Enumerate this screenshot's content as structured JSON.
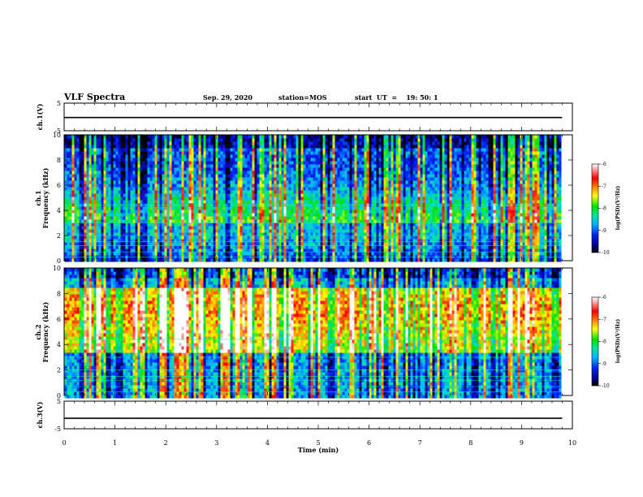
{
  "header": {
    "title": "VLF Spectra",
    "date": "Sep. 29, 2020",
    "station": "station=MOS",
    "start": "start  UT  =    19: 50: 1"
  },
  "chart_data": [
    {
      "type": "line",
      "name": "ch1_waveform",
      "ylabel": "ch.1(V)",
      "ylim": [
        -5,
        5
      ],
      "yticks": [
        "5",
        "-5"
      ],
      "x": [
        0,
        9.8
      ],
      "y": [
        -0.2,
        -0.2
      ]
    },
    {
      "type": "heatmap",
      "name": "ch1_spectrogram",
      "ylabel": "ch.1\nFrequency (kHz)",
      "ylim": [
        0,
        10
      ],
      "yticks": [
        "0",
        "2",
        "4",
        "6",
        "8",
        "10"
      ],
      "x_range_min": [
        0,
        9.8
      ],
      "colorbar": {
        "label": "log(PSD)(V²/Hz)",
        "range": [
          -10,
          -6
        ],
        "ticks": [
          "-6",
          "-7",
          "-8",
          "-9",
          "-10"
        ]
      }
    },
    {
      "type": "heatmap",
      "name": "ch2_spectrogram",
      "ylabel": "ch.2\nFrequency (kHz)",
      "ylim": [
        0,
        10
      ],
      "yticks": [
        "0",
        "2",
        "4",
        "6",
        "8",
        "10"
      ],
      "x_range_min": [
        0,
        9.8
      ],
      "colorbar": {
        "label": "log(PSD)(V²/Hz)",
        "range": [
          -10,
          -6
        ],
        "ticks": [
          "-6",
          "-7",
          "-8",
          "-9",
          "-10"
        ]
      }
    },
    {
      "type": "line",
      "name": "ch3_waveform",
      "ylabel": "ch.3(V)",
      "ylim": [
        -5,
        5
      ],
      "yticks": [
        "5",
        "-5"
      ],
      "x": [
        0,
        9.8
      ],
      "y": [
        -1.2,
        -1.2
      ]
    }
  ],
  "xaxis": {
    "label": "Time (min)",
    "range": [
      0,
      10
    ],
    "ticks": [
      "0",
      "1",
      "2",
      "3",
      "4",
      "5",
      "6",
      "7",
      "8",
      "9",
      "10"
    ]
  },
  "colorbar_labels": {
    "ch1": "log(PSD)(V²/Hz)",
    "ch2": "log(PSD)(V²/Hz)"
  },
  "ylabels": {
    "ch1v": "ch.1(V)",
    "ch1name": "ch.1",
    "ch1freq": "Frequency (kHz)",
    "ch2name": "ch.2",
    "ch2freq": "Frequency (kHz)",
    "ch3v": "ch.3(V)"
  }
}
